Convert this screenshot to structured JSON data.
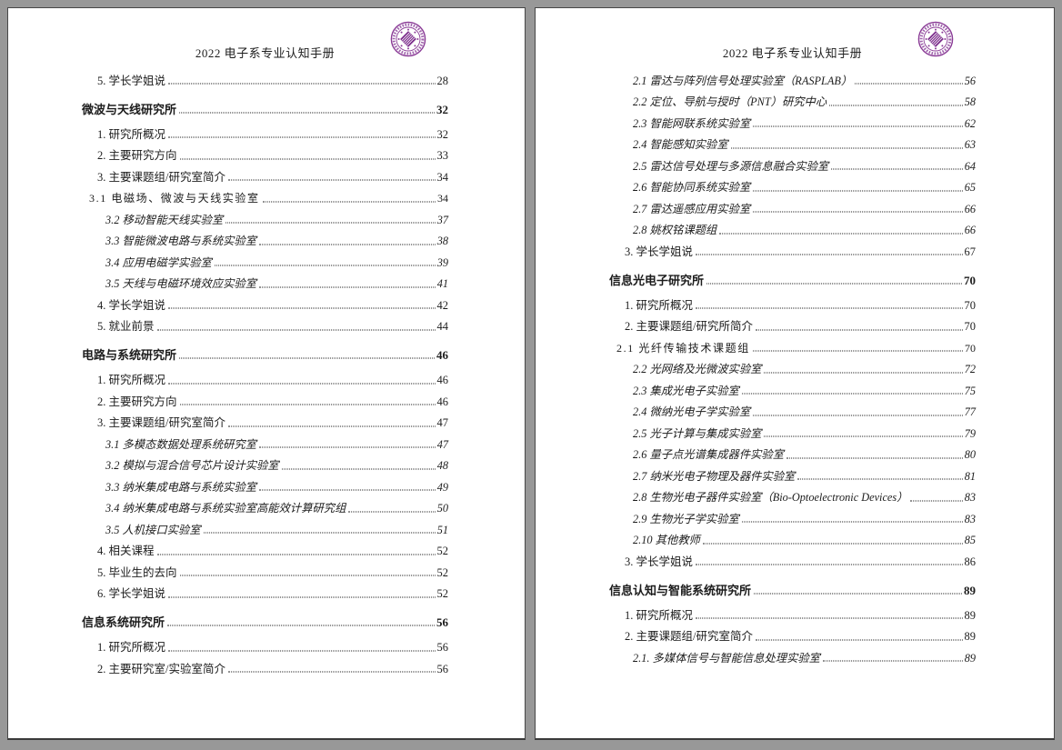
{
  "document": {
    "header_title": "2022 电子系专业认知手册",
    "background_color": "#989898",
    "page_color": "#ffffff",
    "text_color": "#1c1c1c",
    "logo": {
      "name": "university-seal-logo",
      "color": "#8a3b96"
    }
  },
  "pages": [
    {
      "name": "left",
      "entries": [
        {
          "style": "item",
          "label": "5. 学长学姐说",
          "page": "28"
        },
        {
          "style": "section",
          "label": "微波与天线研究所",
          "page": "32"
        },
        {
          "style": "item",
          "label": "1. 研究所概况",
          "page": "32"
        },
        {
          "style": "item",
          "label": "2. 主要研究方向",
          "page": "33"
        },
        {
          "style": "item",
          "label": "3. 主要课题组/研究室简介",
          "page": "34"
        },
        {
          "style": "kai",
          "label": "3.1 电磁场、微波与天线实验室",
          "page": "34"
        },
        {
          "style": "italic",
          "label": "3.2 移动智能天线实验室",
          "page": "37"
        },
        {
          "style": "italic",
          "label": "3.3 智能微波电路与系统实验室",
          "page": "38"
        },
        {
          "style": "italic",
          "label": "3.4 应用电磁学实验室",
          "page": "39"
        },
        {
          "style": "italic",
          "label": "3.5 天线与电磁环境效应实验室",
          "page": "41"
        },
        {
          "style": "item",
          "label": "4. 学长学姐说",
          "page": "42"
        },
        {
          "style": "item",
          "label": "5. 就业前景",
          "page": "44"
        },
        {
          "style": "section",
          "label": "电路与系统研究所",
          "page": "46"
        },
        {
          "style": "item",
          "label": "1. 研究所概况",
          "page": "46"
        },
        {
          "style": "item",
          "label": "2. 主要研究方向",
          "page": "46"
        },
        {
          "style": "item",
          "label": "3. 主要课题组/研究室简介",
          "page": "47"
        },
        {
          "style": "italic",
          "label": "3.1 多模态数据处理系统研究室",
          "page": "47"
        },
        {
          "style": "italic",
          "label": "3.2 模拟与混合信号芯片设计实验室",
          "page": "48"
        },
        {
          "style": "italic",
          "label": "3.3 纳米集成电路与系统实验室",
          "page": "49"
        },
        {
          "style": "italic",
          "label": "3.4 纳米集成电路与系统实验室高能效计算研究组",
          "page": "50"
        },
        {
          "style": "italic",
          "label": "3.5 人机接口实验室",
          "page": "51"
        },
        {
          "style": "item",
          "label": "4. 相关课程",
          "page": "52"
        },
        {
          "style": "item",
          "label": "5. 毕业生的去向",
          "page": "52"
        },
        {
          "style": "item",
          "label": "6. 学长学姐说",
          "page": "52"
        },
        {
          "style": "section",
          "label": "信息系统研究所",
          "page": "56"
        },
        {
          "style": "item",
          "label": "1. 研究所概况",
          "page": "56"
        },
        {
          "style": "item",
          "label": "2. 主要研究室/实验室简介",
          "page": "56"
        }
      ]
    },
    {
      "name": "right",
      "entries": [
        {
          "style": "italic",
          "label": "2.1 雷达与阵列信号处理实验室（RASPLAB）",
          "page": "56"
        },
        {
          "style": "italic",
          "label": "2.2 定位、导航与授时（PNT）研究中心",
          "page": "58"
        },
        {
          "style": "italic",
          "label": "2.3 智能网联系统实验室",
          "page": "62"
        },
        {
          "style": "italic",
          "label": "2.4 智能感知实验室",
          "page": "63"
        },
        {
          "style": "italic",
          "label": "2.5 雷达信号处理与多源信息融合实验室",
          "page": "64"
        },
        {
          "style": "italic",
          "label": "2.6 智能协同系统实验室",
          "page": "65"
        },
        {
          "style": "italic",
          "label": "2.7 雷达遥感应用实验室",
          "page": "66"
        },
        {
          "style": "italic",
          "label": "2.8 姚权铭课题组",
          "page": "66"
        },
        {
          "style": "item",
          "label": "3. 学长学姐说",
          "page": "67"
        },
        {
          "style": "section",
          "label": "信息光电子研究所",
          "page": "70"
        },
        {
          "style": "item",
          "label": "1. 研究所概况",
          "page": "70"
        },
        {
          "style": "item",
          "label": "2. 主要课题组/研究所简介",
          "page": "70"
        },
        {
          "style": "kai",
          "label": "2.1 光纤传输技术课题组",
          "page": "70"
        },
        {
          "style": "italic",
          "label": "2.2 光网络及光微波实验室",
          "page": "72"
        },
        {
          "style": "italic",
          "label": "2.3 集成光电子实验室",
          "page": "75"
        },
        {
          "style": "italic",
          "label": "2.4 微纳光电子学实验室",
          "page": "77"
        },
        {
          "style": "italic",
          "label": "2.5 光子计算与集成实验室",
          "page": "79"
        },
        {
          "style": "italic",
          "label": "2.6 量子点光谱集成器件实验室",
          "page": "80"
        },
        {
          "style": "italic",
          "label": "2.7 纳米光电子物理及器件实验室",
          "page": "81"
        },
        {
          "style": "italic",
          "label": "2.8 生物光电子器件实验室（Bio-Optoelectronic Devices）",
          "page": "83"
        },
        {
          "style": "italic",
          "label": "2.9 生物光子学实验室",
          "page": "83"
        },
        {
          "style": "italic",
          "label": "2.10 其他教师",
          "page": "85"
        },
        {
          "style": "item",
          "label": "3. 学长学姐说",
          "page": "86"
        },
        {
          "style": "section",
          "label": "信息认知与智能系统研究所",
          "page": "89"
        },
        {
          "style": "item",
          "label": "1. 研究所概况",
          "page": "89"
        },
        {
          "style": "item",
          "label": "2. 主要课题组/研究室简介",
          "page": "89"
        },
        {
          "style": "italic",
          "label": "2.1. 多媒体信号与智能信息处理实验室",
          "page": "89"
        }
      ]
    }
  ]
}
